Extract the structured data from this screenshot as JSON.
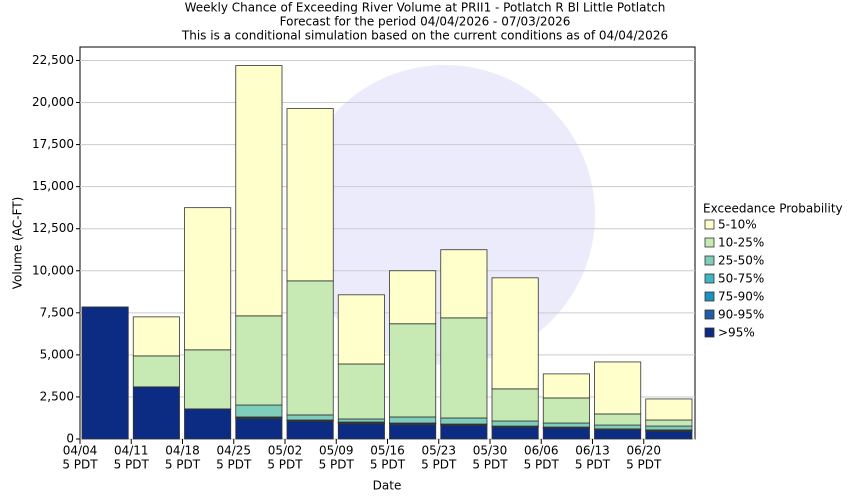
{
  "chart_data": {
    "type": "stacked_bar",
    "title": [
      "Weekly Chance of Exceeding River Volume at PRII1 - Potlatch R Bl Little Potlatch",
      "Forecast for the period 04/04/2026 - 07/03/2026",
      "This is a conditional simulation based on the current conditions as of 04/04/2026"
    ],
    "x_label": "Date",
    "y_label": "Volume (AC-FT)",
    "legend_title": "Exceedance Probability",
    "legend": "right",
    "categories": [
      "04/04",
      "04/11",
      "04/18",
      "04/25",
      "05/02",
      "05/09",
      "05/16",
      "05/23",
      "05/30",
      "06/06",
      "06/13",
      "06/20"
    ],
    "tick_sublabel": "5 PDT",
    "ylim": [
      0,
      23300
    ],
    "yticks": [
      0,
      {
        "value": 2500,
        "label": "2,500"
      },
      {
        "value": 5000,
        "label": "5,000"
      },
      {
        "value": 7500,
        "label": "7,500"
      },
      {
        "value": 10000,
        "label": "10,000"
      },
      {
        "value": 12500,
        "label": "12,500"
      },
      {
        "value": 15000,
        "label": "15,000"
      },
      {
        "value": 17500,
        "label": "17,500"
      },
      {
        "value": 20000,
        "label": "20,000"
      },
      {
        "value": 22500,
        "label": "22,500"
      }
    ],
    "grid": true,
    "series": [
      {
        "name": ">95%",
        "color": "#0c2c84",
        "values": [
          7850,
          3100,
          1790,
          1200,
          1050,
          900,
          850,
          800,
          700,
          650,
          550,
          450
        ]
      },
      {
        "name": "90-95%",
        "color": "#225ea8",
        "values": [
          0,
          0,
          0,
          60,
          50,
          60,
          60,
          50,
          40,
          40,
          30,
          50
        ]
      },
      {
        "name": "75-90%",
        "color": "#1d91c0",
        "values": [
          0,
          0,
          0,
          30,
          20,
          30,
          30,
          30,
          20,
          20,
          20,
          20
        ]
      },
      {
        "name": "50-75%",
        "color": "#41b6c4",
        "values": [
          0,
          0,
          0,
          20,
          10,
          20,
          10,
          10,
          10,
          0,
          0,
          20
        ]
      },
      {
        "name": "25-50%",
        "color": "#7fcdbb",
        "values": [
          0,
          0,
          0,
          710,
          300,
          180,
          360,
          360,
          300,
          240,
          230,
          230
        ]
      },
      {
        "name": "10-25%",
        "color": "#c7e9b4",
        "values": [
          0,
          1840,
          3510,
          5300,
          7970,
          3270,
          5540,
          5950,
          1910,
          1490,
          660,
          360
        ]
      },
      {
        "name": "5-10%",
        "color": "#ffffcc",
        "values": [
          0,
          2320,
          8450,
          14880,
          10240,
          4110,
          3150,
          4050,
          6600,
          1430,
          3090,
          1250
        ]
      }
    ]
  }
}
